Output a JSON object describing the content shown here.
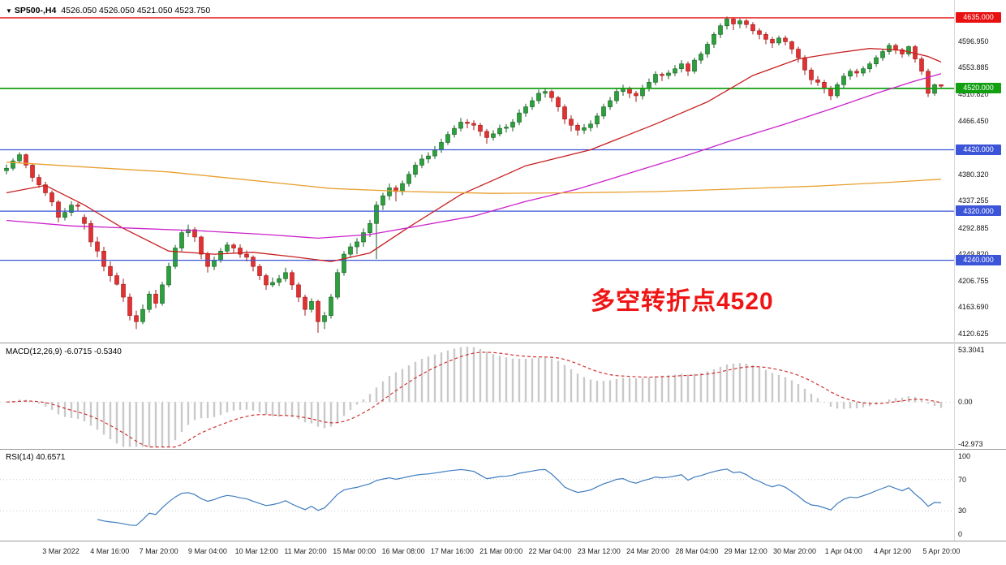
{
  "header": {
    "expander_icon": "▼",
    "symbol_period": "SP500-,H4",
    "ohlc_values": "4526.050 4526.050 4521.050 4523.750"
  },
  "chart_data": {
    "type": "candlestick",
    "symbol": "SP500-",
    "timeframe": "H4",
    "title": "SP500- H4 candlestick chart with MACD and RSI",
    "current_bar": {
      "open": 4526.05,
      "high": 4526.05,
      "low": 4521.05,
      "close": 4523.75
    },
    "price_axis": {
      "ylim": [
        4106,
        4664
      ],
      "ticks": [
        "4596.950",
        "4553.885",
        "4510.820",
        "4466.450",
        "4380.320",
        "4337.255",
        "4292.885",
        "4249.820",
        "4206.755",
        "4163.690",
        "4120.625"
      ]
    },
    "hlines": [
      {
        "name": "resistance-line",
        "price": 4635.0,
        "label": "4635.000",
        "color": "#e81010",
        "width": 1.4
      },
      {
        "name": "pivot-line",
        "price": 4520.0,
        "label": "4520.000",
        "color": "#12a012",
        "width": 1.8
      },
      {
        "name": "support-line-1",
        "price": 4420.0,
        "label": "4420.000",
        "color": "#3c55d8",
        "width": 1.3
      },
      {
        "name": "support-line-2",
        "price": 4320.0,
        "label": "4320.000",
        "color": "#3c55d8",
        "width": 1.3
      },
      {
        "name": "support-line-3",
        "price": 4240.0,
        "label": "4240.000",
        "color": "#3c55d8",
        "width": 1.3
      }
    ],
    "x_labels": [
      "3 Mar 2022",
      "4 Mar 16:00",
      "7 Mar 20:00",
      "9 Mar 04:00",
      "10 Mar 12:00",
      "11 Mar 20:00",
      "15 Mar 00:00",
      "16 Mar 08:00",
      "17 Mar 16:00",
      "21 Mar 00:00",
      "22 Mar 04:00",
      "23 Mar 12:00",
      "24 Mar 20:00",
      "28 Mar 04:00",
      "29 Mar 12:00",
      "30 Mar 20:00",
      "1 Apr 04:00",
      "4 Apr 12:00",
      "5 Apr 20:00"
    ],
    "candles": [
      [
        4386,
        4396,
        4380,
        4390
      ],
      [
        4390,
        4406,
        4386,
        4402
      ],
      [
        4402,
        4416,
        4398,
        4412
      ],
      [
        4412,
        4414,
        4390,
        4395
      ],
      [
        4395,
        4398,
        4368,
        4375
      ],
      [
        4375,
        4380,
        4358,
        4363
      ],
      [
        4363,
        4368,
        4345,
        4350
      ],
      [
        4350,
        4354,
        4328,
        4335
      ],
      [
        4335,
        4338,
        4302,
        4310
      ],
      [
        4310,
        4325,
        4305,
        4318
      ],
      [
        4318,
        4336,
        4312,
        4330
      ],
      [
        4330,
        4334,
        4320,
        4328
      ],
      [
        4310,
        4315,
        4290,
        4300
      ],
      [
        4300,
        4305,
        4262,
        4270
      ],
      [
        4270,
        4278,
        4245,
        4255
      ],
      [
        4255,
        4262,
        4222,
        4230
      ],
      [
        4230,
        4238,
        4205,
        4215
      ],
      [
        4215,
        4220,
        4199,
        4201
      ],
      [
        4201,
        4210,
        4172,
        4180
      ],
      [
        4180,
        4186,
        4142,
        4150
      ],
      [
        4150,
        4158,
        4128,
        4140
      ],
      [
        4140,
        4168,
        4136,
        4160
      ],
      [
        4160,
        4190,
        4155,
        4185
      ],
      [
        4185,
        4192,
        4162,
        4170
      ],
      [
        4170,
        4205,
        4166,
        4200
      ],
      [
        4200,
        4236,
        4196,
        4230
      ],
      [
        4230,
        4265,
        4226,
        4260
      ],
      [
        4260,
        4290,
        4255,
        4285
      ],
      [
        4285,
        4298,
        4278,
        4290
      ],
      [
        4290,
        4294,
        4270,
        4278
      ],
      [
        4278,
        4280,
        4242,
        4250
      ],
      [
        4250,
        4254,
        4220,
        4230
      ],
      [
        4230,
        4246,
        4224,
        4240
      ],
      [
        4240,
        4260,
        4236,
        4255
      ],
      [
        4255,
        4270,
        4250,
        4265
      ],
      [
        4265,
        4268,
        4252,
        4260
      ],
      [
        4260,
        4266,
        4244,
        4250
      ],
      [
        4250,
        4256,
        4238,
        4245
      ],
      [
        4245,
        4248,
        4222,
        4230
      ],
      [
        4230,
        4234,
        4208,
        4215
      ],
      [
        4215,
        4218,
        4192,
        4200
      ],
      [
        4200,
        4212,
        4196,
        4204
      ],
      [
        4204,
        4216,
        4198,
        4210
      ],
      [
        4210,
        4228,
        4205,
        4220
      ],
      [
        4220,
        4224,
        4192,
        4200
      ],
      [
        4200,
        4204,
        4172,
        4180
      ],
      [
        4180,
        4184,
        4150,
        4160
      ],
      [
        4160,
        4178,
        4155,
        4173
      ],
      [
        4173,
        4176,
        4122,
        4140
      ],
      [
        4140,
        4156,
        4128,
        4150
      ],
      [
        4150,
        4185,
        4145,
        4180
      ],
      [
        4180,
        4226,
        4176,
        4220
      ],
      [
        4220,
        4255,
        4215,
        4250
      ],
      [
        4250,
        4268,
        4244,
        4262
      ],
      [
        4262,
        4276,
        4250,
        4270
      ],
      [
        4270,
        4292,
        4262,
        4285
      ],
      [
        4285,
        4306,
        4278,
        4300
      ],
      [
        4300,
        4336,
        4242,
        4330
      ],
      [
        4330,
        4350,
        4322,
        4345
      ],
      [
        4345,
        4365,
        4338,
        4358
      ],
      [
        4358,
        4362,
        4336,
        4352
      ],
      [
        4352,
        4370,
        4346,
        4365
      ],
      [
        4365,
        4385,
        4360,
        4380
      ],
      [
        4380,
        4400,
        4375,
        4395
      ],
      [
        4395,
        4412,
        4390,
        4405
      ],
      [
        4405,
        4416,
        4398,
        4410
      ],
      [
        4410,
        4426,
        4405,
        4420
      ],
      [
        4420,
        4438,
        4415,
        4432
      ],
      [
        4432,
        4450,
        4428,
        4445
      ],
      [
        4445,
        4460,
        4440,
        4455
      ],
      [
        4455,
        4472,
        4450,
        4465
      ],
      [
        4465,
        4470,
        4455,
        4463
      ],
      [
        4463,
        4468,
        4452,
        4460
      ],
      [
        4460,
        4464,
        4442,
        4450
      ],
      [
        4450,
        4454,
        4430,
        4440
      ],
      [
        4440,
        4452,
        4435,
        4446
      ],
      [
        4446,
        4461,
        4442,
        4455
      ],
      [
        4455,
        4462,
        4448,
        4457
      ],
      [
        4457,
        4470,
        4450,
        4465
      ],
      [
        4465,
        4486,
        4460,
        4480
      ],
      [
        4480,
        4495,
        4474,
        4490
      ],
      [
        4490,
        4506,
        4485,
        4500
      ],
      [
        4500,
        4518,
        4495,
        4512
      ],
      [
        4512,
        4520,
        4505,
        4515
      ],
      [
        4515,
        4518,
        4498,
        4505
      ],
      [
        4505,
        4508,
        4482,
        4490
      ],
      [
        4490,
        4494,
        4462,
        4470
      ],
      [
        4470,
        4476,
        4450,
        4460
      ],
      [
        4460,
        4464,
        4443,
        4452
      ],
      [
        4452,
        4462,
        4446,
        4456
      ],
      [
        4456,
        4468,
        4450,
        4462
      ],
      [
        4462,
        4480,
        4456,
        4475
      ],
      [
        4475,
        4495,
        4470,
        4490
      ],
      [
        4490,
        4506,
        4485,
        4500
      ],
      [
        4500,
        4520,
        4495,
        4515
      ],
      [
        4515,
        4526,
        4508,
        4520
      ],
      [
        4520,
        4523,
        4504,
        4512
      ],
      [
        4512,
        4516,
        4498,
        4508
      ],
      [
        4508,
        4526,
        4502,
        4520
      ],
      [
        4520,
        4536,
        4515,
        4530
      ],
      [
        4530,
        4548,
        4525,
        4543
      ],
      [
        4543,
        4546,
        4532,
        4541
      ],
      [
        4541,
        4550,
        4535,
        4545
      ],
      [
        4545,
        4558,
        4540,
        4552
      ],
      [
        4552,
        4566,
        4546,
        4560
      ],
      [
        4560,
        4564,
        4540,
        4548
      ],
      [
        4548,
        4570,
        4544,
        4566
      ],
      [
        4566,
        4580,
        4560,
        4576
      ],
      [
        4576,
        4596,
        4570,
        4592
      ],
      [
        4592,
        4612,
        4586,
        4608
      ],
      [
        4608,
        4626,
        4602,
        4622
      ],
      [
        4622,
        4637,
        4616,
        4633
      ],
      [
        4633,
        4636,
        4615,
        4625
      ],
      [
        4625,
        4634,
        4618,
        4630
      ],
      [
        4630,
        4633,
        4618,
        4624
      ],
      [
        4624,
        4628,
        4608,
        4614
      ],
      [
        4614,
        4618,
        4600,
        4608
      ],
      [
        4608,
        4612,
        4592,
        4600
      ],
      [
        4600,
        4604,
        4586,
        4594
      ],
      [
        4594,
        4606,
        4590,
        4602
      ],
      [
        4602,
        4606,
        4590,
        4596
      ],
      [
        4596,
        4598,
        4576,
        4584
      ],
      [
        4584,
        4588,
        4562,
        4570
      ],
      [
        4570,
        4574,
        4542,
        4550
      ],
      [
        4550,
        4554,
        4526,
        4534
      ],
      [
        4534,
        4540,
        4524,
        4530
      ],
      [
        4530,
        4534,
        4512,
        4520
      ],
      [
        4520,
        4524,
        4501,
        4508
      ],
      [
        4508,
        4530,
        4504,
        4526
      ],
      [
        4526,
        4545,
        4520,
        4540
      ],
      [
        4540,
        4552,
        4534,
        4548
      ],
      [
        4548,
        4552,
        4538,
        4545
      ],
      [
        4545,
        4556,
        4540,
        4552
      ],
      [
        4552,
        4564,
        4546,
        4560
      ],
      [
        4560,
        4574,
        4555,
        4570
      ],
      [
        4570,
        4584,
        4565,
        4580
      ],
      [
        4580,
        4594,
        4575,
        4590
      ],
      [
        4590,
        4593,
        4576,
        4583
      ],
      [
        4583,
        4586,
        4570,
        4576
      ],
      [
        4576,
        4590,
        4572,
        4588
      ],
      [
        4588,
        4591,
        4562,
        4568
      ],
      [
        4568,
        4572,
        4542,
        4548
      ],
      [
        4548,
        4552,
        4506,
        4512
      ],
      [
        4512,
        4528,
        4508,
        4526
      ],
      [
        4526.05,
        4526.05,
        4521.05,
        4523.75
      ]
    ],
    "moving_averages": [
      {
        "name": "ma-fast",
        "color": "#c81e1e",
        "points": [
          [
            0,
            4350
          ],
          [
            6,
            4362
          ],
          [
            12,
            4330
          ],
          [
            18,
            4292
          ],
          [
            25,
            4255
          ],
          [
            32,
            4250
          ],
          [
            38,
            4253
          ],
          [
            44,
            4246
          ],
          [
            50,
            4238
          ],
          [
            56,
            4252
          ],
          [
            62,
            4294
          ],
          [
            70,
            4347
          ],
          [
            80,
            4394
          ],
          [
            90,
            4420
          ],
          [
            100,
            4462
          ],
          [
            108,
            4498
          ],
          [
            115,
            4541
          ],
          [
            122,
            4568
          ],
          [
            128,
            4578
          ],
          [
            133,
            4585
          ],
          [
            138,
            4582
          ],
          [
            142,
            4572
          ],
          [
            144,
            4563
          ]
        ]
      },
      {
        "name": "ma-mid",
        "color": "#cc22cc",
        "points": [
          [
            0,
            4305
          ],
          [
            10,
            4296
          ],
          [
            20,
            4292
          ],
          [
            30,
            4288
          ],
          [
            40,
            4282
          ],
          [
            48,
            4276
          ],
          [
            56,
            4282
          ],
          [
            64,
            4297
          ],
          [
            72,
            4312
          ],
          [
            80,
            4336
          ],
          [
            88,
            4356
          ],
          [
            96,
            4382
          ],
          [
            104,
            4408
          ],
          [
            112,
            4436
          ],
          [
            120,
            4462
          ],
          [
            128,
            4490
          ],
          [
            134,
            4512
          ],
          [
            140,
            4532
          ],
          [
            144,
            4544
          ]
        ]
      },
      {
        "name": "ma-slow",
        "color": "#e8a030",
        "points": [
          [
            0,
            4400
          ],
          [
            12,
            4392
          ],
          [
            25,
            4384
          ],
          [
            38,
            4370
          ],
          [
            50,
            4357
          ],
          [
            62,
            4352
          ],
          [
            75,
            4349
          ],
          [
            88,
            4350
          ],
          [
            100,
            4352
          ],
          [
            112,
            4356
          ],
          [
            125,
            4361
          ],
          [
            136,
            4367
          ],
          [
            144,
            4372
          ]
        ]
      }
    ],
    "indicators": [
      {
        "name": "MACD",
        "params": "12,26,9",
        "main_value": -6.0715,
        "signal_value": -0.534,
        "label": "MACD(12,26,9) -6.0715 -0.5340",
        "ylim": [
          -48,
          60
        ],
        "axis_labels": [
          {
            "text": "53.3041",
            "value": 53.3041
          },
          {
            "text": "0.00",
            "value": 0
          },
          {
            "text": "-42.973",
            "value": -42.973
          }
        ],
        "colors": {
          "histogram": "#c9c9c9",
          "signal": "#d03030"
        }
      },
      {
        "name": "RSI",
        "params": "14",
        "value": 40.6571,
        "label": "RSI(14) 40.6571",
        "ylim": [
          -8,
          108
        ],
        "levels": [
          70,
          30
        ],
        "axis_labels": [
          {
            "text": "100",
            "value": 100
          },
          {
            "text": "70",
            "value": 70
          },
          {
            "text": "30",
            "value": 30
          },
          {
            "text": "0",
            "value": 0
          }
        ],
        "colors": {
          "line": "#3f7cbf",
          "level": "#c9c9c9"
        }
      }
    ],
    "annotation": {
      "text": "多空转折点4520",
      "color": "#f01515"
    },
    "colors": {
      "up": "#2ca03c",
      "up_border": "#145c20",
      "down": "#e03232",
      "down_border": "#a01818"
    }
  }
}
